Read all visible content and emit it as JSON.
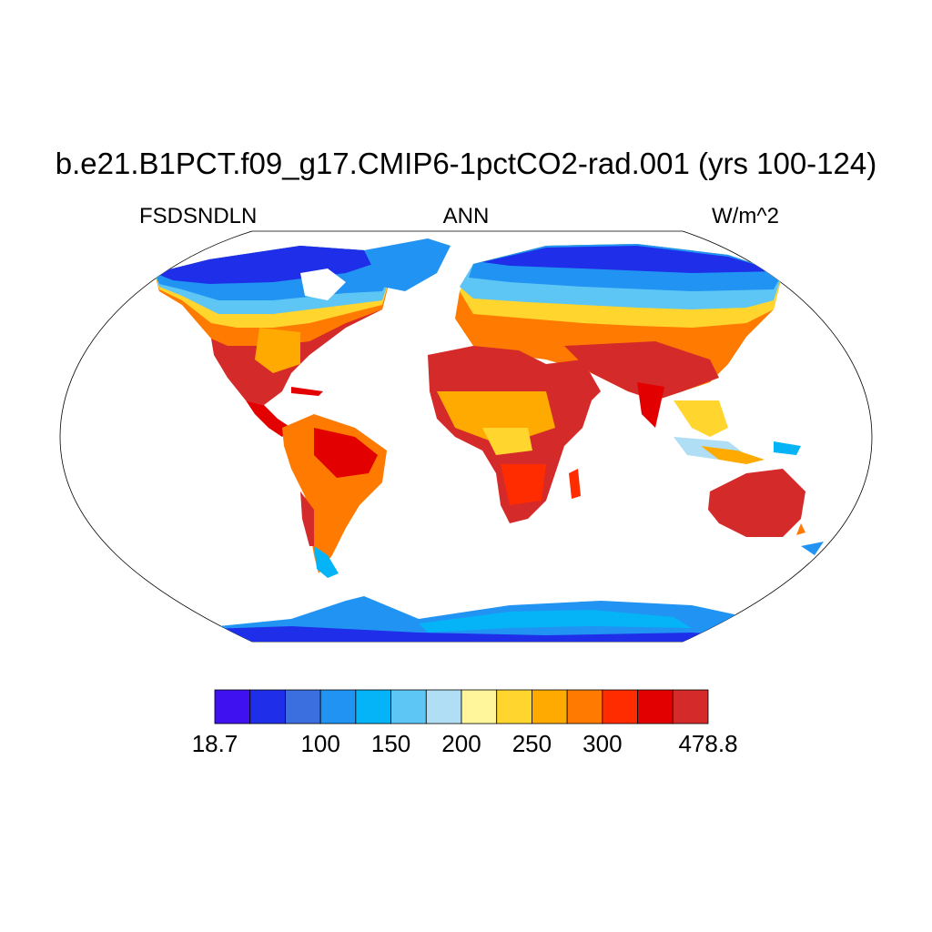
{
  "title": "b.e21.B1PCT.f09_g17.CMIP6-1pctCO2-rad.001 (yrs 100-124)",
  "left_label": "FSDSNDLN",
  "center_label": "ANN",
  "right_label": "W/m^2",
  "colorbar": {
    "colors": [
      "#3f10f0",
      "#1f2ee8",
      "#3b6fe0",
      "#2193f2",
      "#05b4f6",
      "#5dc6f4",
      "#b0def4",
      "#fff59b",
      "#ffd52e",
      "#ffaa00",
      "#ff7a00",
      "#ff2c00",
      "#e20000",
      "#d42a2a"
    ],
    "labels": [
      "18.7",
      "100",
      "150",
      "200",
      "250",
      "300",
      "478.8"
    ],
    "label_positions": [
      0,
      3,
      5,
      7,
      9,
      11,
      14
    ]
  }
}
